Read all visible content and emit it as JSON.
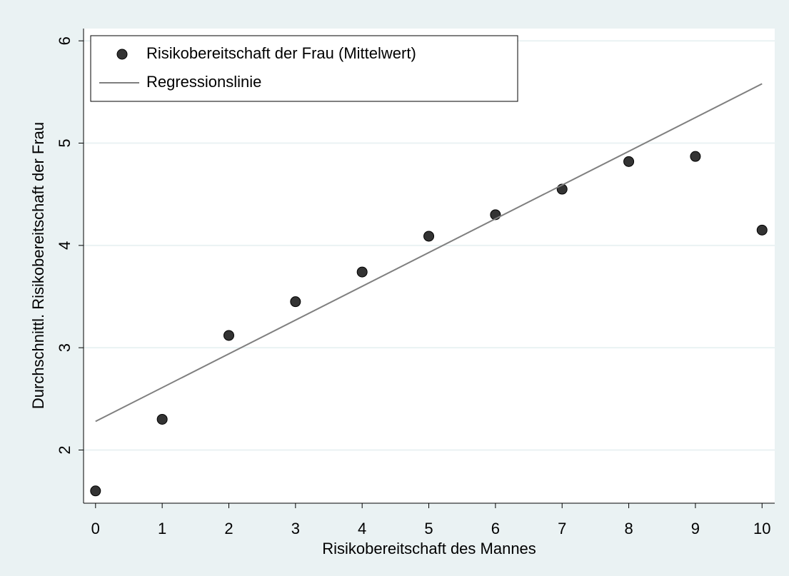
{
  "chart_data": {
    "type": "scatter",
    "x_label": "Risikobereitschaft des Mannes",
    "y_label": "Durchschnittl. Risikobereitschaft der Frau",
    "x": [
      0,
      1,
      2,
      3,
      4,
      5,
      6,
      7,
      8,
      9,
      10
    ],
    "series": [
      {
        "name": "Risikobereitschaft der Frau (Mittelwert)",
        "type": "scatter",
        "color": "#333333",
        "values": [
          1.6,
          2.3,
          3.12,
          3.45,
          3.74,
          4.09,
          4.3,
          4.55,
          4.82,
          4.87,
          4.15
        ]
      },
      {
        "name": "Regressionslinie",
        "type": "line",
        "color": "#7f7f7f",
        "x": [
          0,
          10
        ],
        "values": [
          2.28,
          5.58
        ]
      }
    ],
    "xlim": [
      -0.18,
      10.19
    ],
    "ylim": [
      1.48,
      6.12
    ],
    "xticks": [
      0,
      1,
      2,
      3,
      4,
      5,
      6,
      7,
      8,
      9,
      10
    ],
    "yticks": [
      2,
      3,
      4,
      5,
      6
    ],
    "grid": true,
    "legend": "top-left"
  }
}
